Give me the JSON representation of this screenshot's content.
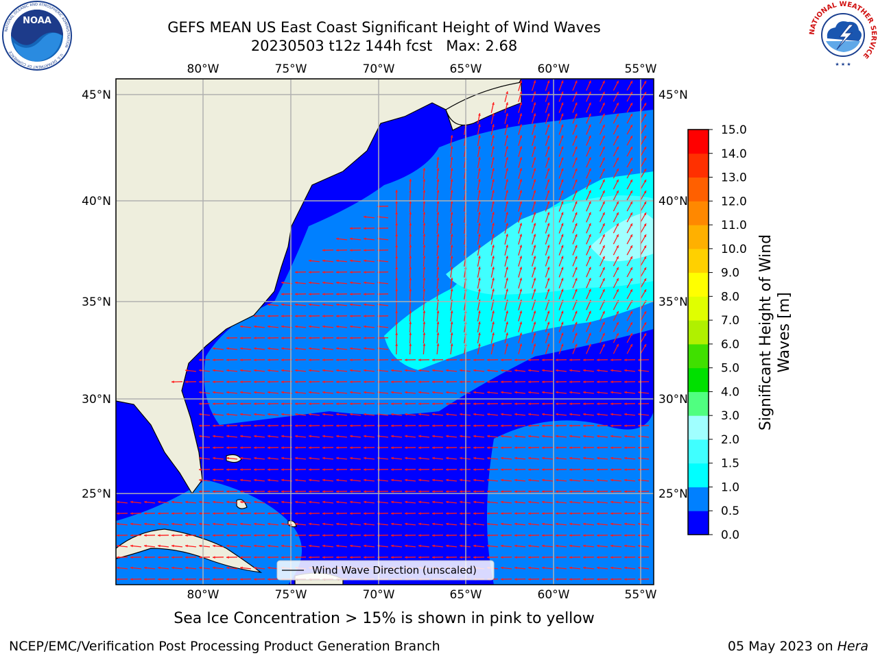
{
  "header": {
    "title": "GEFS MEAN US East Coast Significant Height of Wind Waves",
    "subtitle_run": "20230503 t12z 144h fcst",
    "max_label": "Max: 2.68"
  },
  "logos": {
    "noaa": {
      "name": "NOAA",
      "ring_text": "NATIONAL OCEANIC AND ATMOSPHERIC ADMINISTRATION",
      "bottom_text": "U.S. DEPARTMENT OF COMMERCE"
    },
    "nws": {
      "ring_text": "NATIONAL WEATHER SERVICE"
    }
  },
  "map": {
    "lon_ticks": [
      "80°W",
      "75°W",
      "70°W",
      "65°W",
      "60°W",
      "55°W"
    ],
    "lat_ticks": [
      "45°N",
      "40°N",
      "35°N",
      "30°N",
      "25°N"
    ],
    "lon_range": [
      -85,
      -54.4
    ],
    "lat_range": [
      20,
      46
    ],
    "legend_label": "Wind Wave Direction (unscaled)",
    "colors": {
      "land": "#eeeedd",
      "arrow": "#ff1a1a",
      "grid": "#b0b0b0"
    }
  },
  "colorbar": {
    "label": "Significant Height of Wind Waves [m]",
    "label_line1": "Significant Height of Wind",
    "label_line2": "Waves [m]",
    "ticks": [
      "0.0",
      "0.5",
      "1.0",
      "1.5",
      "2.0",
      "3.0",
      "4.0",
      "5.0",
      "6.0",
      "7.0",
      "8.0",
      "9.0",
      "10.0",
      "11.0",
      "12.0",
      "13.0",
      "14.0",
      "15.0"
    ],
    "colors": [
      "#0000ff",
      "#0080ff",
      "#00ffff",
      "#40ffff",
      "#a0ffff",
      "#50ff80",
      "#00e000",
      "#40e000",
      "#b0f000",
      "#e0ff00",
      "#ffff00",
      "#ffd000",
      "#ffb000",
      "#ff8800",
      "#ff6000",
      "#ff3000",
      "#ff0000"
    ]
  },
  "footer": {
    "sea_ice_note": "Sea Ice Concentration > 15% is shown in pink to yellow",
    "branch": "NCEP/EMC/Verification Post Processing Product Generation Branch",
    "date": "05 May 2023 on",
    "machine": "Hera"
  }
}
